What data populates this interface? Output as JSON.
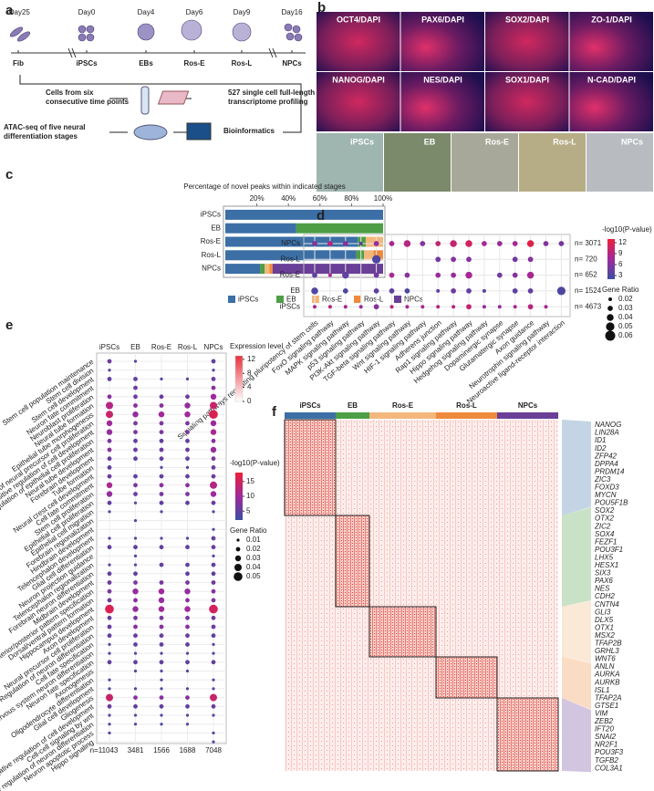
{
  "panel_labels": [
    "a",
    "b",
    "c",
    "d",
    "e",
    "f"
  ],
  "panel_a": {
    "days": [
      "-Day25",
      "Day0",
      "Day4",
      "Day6",
      "Day9",
      "Day16"
    ],
    "stages": [
      "Fib",
      "iPSCs",
      "EBs",
      "Ros-E",
      "Ros-L",
      "NPCs"
    ],
    "steps": [
      [
        "Cells from six",
        "consecutive time points"
      ],
      [
        "527 single cell full-length",
        "transcriptome profiling"
      ],
      [
        "ATAC-seq of five neural",
        "differentiation stages"
      ],
      [
        "Bioinformatics"
      ]
    ]
  },
  "panel_b": {
    "stains": [
      "OCT4/DAPI",
      "PAX6/DAPI",
      "SOX2/DAPI",
      "ZO-1/DAPI",
      "NANOG/DAPI",
      "NES/DAPI",
      "SOX1/DAPI",
      "N-CAD/DAPI"
    ],
    "brightfield": [
      "iPSCs",
      "EB",
      "Ros-E",
      "Ros-L",
      "NPCs"
    ]
  },
  "chart_data": [
    {
      "type": "bar",
      "orientation": "horizontal",
      "stacked": true,
      "title": "Percentage of novel peaks within indicated stages",
      "categories": [
        "iPSCs",
        "EB",
        "Ros-E",
        "Ros-L",
        "NPCs"
      ],
      "series": [
        {
          "name": "iPSCs",
          "color": "#3b6fa6",
          "values": [
            100,
            45,
            84,
            83,
            22
          ]
        },
        {
          "name": "EB",
          "color": "#4d9e46",
          "values": [
            0,
            55,
            5,
            5,
            3
          ]
        },
        {
          "name": "Ros-E",
          "color": "#f3b77c",
          "values": [
            0,
            0,
            11,
            6,
            3
          ]
        },
        {
          "name": "Ros-L",
          "color": "#ee8a3c",
          "values": [
            0,
            0,
            0,
            6,
            2
          ]
        },
        {
          "name": "NPCs",
          "color": "#6a3f97",
          "values": [
            0,
            0,
            0,
            0,
            70
          ]
        }
      ],
      "xlim": [
        0,
        100
      ],
      "xticks": [
        {
          "value": 20,
          "label": "20%"
        },
        {
          "value": 40,
          "label": "40%"
        },
        {
          "value": 60,
          "label": "60%"
        },
        {
          "value": 80,
          "label": "80%"
        },
        {
          "value": 100,
          "label": "100%"
        }
      ],
      "legend": "bottom"
    },
    {
      "type": "dot",
      "categories": [
        "Signaling pathways regulating pluripotency of stem cells",
        "FoxO signaling pathway",
        "MAPK signaling pathway",
        "p53 signaling pathway",
        "PI3K-Akt signaling pathway",
        "TGF-beta signaling pathway",
        "Wnt signaling pathway",
        "HIF-1 signaling pathway",
        "Adherens junction",
        "Rap1 signaling pathway",
        "Hippo signaling pathway",
        "Hedgehog signaling pathway",
        "Dopaminergic synapse",
        "Glutamatergic synapse",
        "Axon guidance",
        "Neurotrophin signaling pathway",
        "Neuroactive ligand-receptor interaction"
      ],
      "rows": [
        "NPCs",
        "Ros-L",
        "Ros-E",
        "EB",
        "iPSCs"
      ],
      "n_labels": [
        "n= 3071",
        "n= 720",
        "n= 652",
        "n= 1524",
        "n= 4673"
      ],
      "pvalues": [
        [
          6,
          9,
          6,
          4,
          7,
          8,
          9,
          6,
          10,
          10,
          11,
          8,
          7,
          8,
          12,
          6,
          5
        ],
        [
          null,
          null,
          null,
          null,
          3,
          null,
          null,
          null,
          5,
          6,
          6,
          null,
          null,
          5,
          6,
          null,
          null
        ],
        [
          4,
          8,
          4,
          null,
          5,
          8,
          6,
          null,
          7,
          7,
          8,
          null,
          5,
          6,
          8,
          null,
          null
        ],
        [
          3,
          null,
          3,
          null,
          4,
          4,
          3,
          null,
          4,
          5,
          4,
          3,
          null,
          4,
          4,
          null,
          3
        ],
        [
          8,
          9,
          8,
          7,
          6,
          9,
          8,
          8,
          9,
          9,
          10,
          7,
          7,
          8,
          9,
          8,
          null
        ]
      ],
      "ratios": [
        [
          0.03,
          0.03,
          0.03,
          0.02,
          0.03,
          0.03,
          0.04,
          0.03,
          0.03,
          0.04,
          0.04,
          0.03,
          0.03,
          0.03,
          0.04,
          0.03,
          0.03
        ],
        [
          null,
          null,
          null,
          null,
          0.05,
          null,
          null,
          null,
          0.03,
          0.03,
          0.03,
          null,
          null,
          0.03,
          0.03,
          null,
          null
        ],
        [
          0.03,
          0.02,
          0.04,
          null,
          0.03,
          0.03,
          0.03,
          null,
          0.03,
          0.03,
          0.04,
          null,
          0.03,
          0.03,
          0.04,
          null,
          null
        ],
        [
          0.04,
          null,
          0.03,
          null,
          0.03,
          0.03,
          0.03,
          null,
          0.02,
          0.03,
          0.03,
          0.02,
          null,
          0.03,
          0.03,
          null,
          0.05
        ],
        [
          0.02,
          0.02,
          0.02,
          0.02,
          0.03,
          0.02,
          0.02,
          0.02,
          0.02,
          0.02,
          0.03,
          0.02,
          0.02,
          0.02,
          0.03,
          0.02,
          null
        ]
      ],
      "color_title": "-log10(P-value)",
      "colors": [
        "#3c4ea2",
        "#a0299b",
        "#ec1f3a"
      ],
      "clim": [
        2,
        13
      ],
      "color_ticks": [
        3,
        6,
        9,
        12
      ],
      "size_title": "Gene Ratio",
      "size_ticks": [
        0.02,
        0.03,
        0.04,
        0.05,
        0.06
      ],
      "size_range": [
        0.02,
        0.06
      ]
    },
    {
      "type": "dot",
      "categories": [
        "iPSCs",
        "EB",
        "Ros-E",
        "Ros-L",
        "NPCs"
      ],
      "n_labels": [
        "n=11043",
        "3481",
        "1566",
        "1688",
        "7048"
      ],
      "rows": [
        "Stem cell population maintenance",
        "Stem cell division",
        "Stem cell development",
        "Neuron fate commitment",
        "Neuroblast proliferation",
        "Neural tube formation",
        "Epithelial tube morphogenesis",
        "Positive regulation of neural precursor cell proliferation",
        "Positive regulation of cell development",
        "Regulation of epithelial cell proliferation",
        "Neural tube development",
        "Forebrain development",
        "Tube formation",
        "Neural crest cell development",
        "Cell fate commitment",
        "Stem cell proliferation",
        "Epithelial cell proliferation",
        "Epithelial cell migration",
        "Forebrain regionalization",
        "Hindbrain development",
        "Telencephalon development",
        "Glial cell differentiation",
        "Neuron projection guidance",
        "Telencephalon regionalization",
        "Forebrain neuron differentiation",
        "Midbrain development",
        "Anterior/posterior pattern specification",
        "Dorsal/ventral pattern formation",
        "Hippocampus development",
        "Axon development",
        "Neural precursor cell proliferation",
        "Regulation of neuron differentiation",
        "Cell fate specification",
        "Central nervous system neuron differentiation",
        "Neuron fate specification",
        "Axonogenesis",
        "Oligodendrocyte differentiation",
        "Glial cell development",
        "Gliogenesis",
        "Negative regulation of cell development",
        "Cell-cell signaling by wnt",
        "Negative regulation of neuron differentiation",
        "Neuron apoptotic process",
        "Hippo signaling"
      ],
      "pvalues": [
        [
          6,
          3,
          null,
          null,
          5
        ],
        [
          4,
          null,
          null,
          null,
          4
        ],
        [
          5,
          5,
          4,
          4,
          6
        ],
        [
          null,
          6,
          null,
          null,
          8
        ],
        [
          8,
          6,
          6,
          6,
          10
        ],
        [
          12,
          8,
          8,
          9,
          14
        ],
        [
          14,
          9,
          10,
          10,
          16
        ],
        [
          10,
          7,
          7,
          7,
          10
        ],
        [
          9,
          7,
          7,
          7,
          11
        ],
        [
          7,
          5,
          5,
          5,
          8
        ],
        [
          8,
          6,
          6,
          6,
          9
        ],
        [
          6,
          5,
          5,
          5,
          7
        ],
        [
          5,
          null,
          4,
          4,
          6
        ],
        [
          6,
          5,
          5,
          5,
          6
        ],
        [
          11,
          7,
          8,
          8,
          12
        ],
        [
          9,
          6,
          7,
          7,
          10
        ],
        [
          5,
          4,
          5,
          5,
          6
        ],
        [
          4,
          null,
          4,
          null,
          4
        ],
        [
          null,
          4,
          null,
          null,
          null
        ],
        [
          null,
          null,
          null,
          null,
          4
        ],
        [
          4,
          4,
          4,
          4,
          5
        ],
        [
          5,
          5,
          5,
          5,
          6
        ],
        [
          null,
          4,
          null,
          null,
          4
        ],
        [
          4,
          4,
          5,
          5,
          5
        ],
        [
          5,
          5,
          null,
          5,
          5
        ],
        [
          6,
          7,
          7,
          7,
          6
        ],
        [
          7,
          9,
          10,
          9,
          8
        ],
        [
          6,
          8,
          9,
          8,
          7
        ],
        [
          16,
          9,
          10,
          10,
          15
        ],
        [
          5,
          7,
          7,
          7,
          6
        ],
        [
          6,
          8,
          8,
          8,
          6
        ],
        [
          5,
          6,
          6,
          6,
          5
        ],
        [
          4,
          5,
          5,
          5,
          4
        ],
        [
          4,
          4,
          4,
          4,
          4
        ],
        [
          5,
          5,
          5,
          5,
          5
        ],
        [
          null,
          4,
          4,
          4,
          null
        ],
        [
          4,
          null,
          4,
          null,
          4
        ],
        [
          4,
          4,
          4,
          4,
          4
        ],
        [
          14,
          8,
          8,
          8,
          14
        ],
        [
          6,
          5,
          5,
          5,
          6
        ],
        [
          4,
          4,
          4,
          4,
          4
        ],
        [
          3,
          3,
          3,
          3,
          null
        ],
        [
          4,
          null,
          null,
          null,
          4
        ],
        [
          null,
          null,
          null,
          null,
          4
        ]
      ],
      "ratios": [
        [
          0.02,
          0.01,
          null,
          null,
          0.02
        ],
        [
          0.01,
          null,
          null,
          null,
          0.01
        ],
        [
          0.02,
          0.02,
          0.01,
          0.01,
          0.02
        ],
        [
          null,
          0.02,
          null,
          null,
          0.02
        ],
        [
          0.02,
          0.02,
          0.02,
          0.02,
          0.03
        ],
        [
          0.04,
          0.02,
          0.02,
          0.03,
          0.04
        ],
        [
          0.04,
          0.03,
          0.03,
          0.03,
          0.05
        ],
        [
          0.03,
          0.02,
          0.02,
          0.02,
          0.03
        ],
        [
          0.03,
          0.02,
          0.02,
          0.02,
          0.03
        ],
        [
          0.02,
          0.02,
          0.02,
          0.02,
          0.02
        ],
        [
          0.02,
          0.02,
          0.02,
          0.02,
          0.03
        ],
        [
          0.02,
          0.02,
          0.02,
          0.02,
          0.02
        ],
        [
          0.02,
          null,
          0.01,
          0.01,
          0.02
        ],
        [
          0.02,
          0.02,
          0.02,
          0.02,
          0.02
        ],
        [
          0.03,
          0.02,
          0.02,
          0.02,
          0.04
        ],
        [
          0.03,
          0.02,
          0.02,
          0.02,
          0.03
        ],
        [
          0.02,
          0.01,
          0.02,
          0.02,
          0.02
        ],
        [
          0.01,
          null,
          0.01,
          null,
          0.01
        ],
        [
          null,
          0.01,
          null,
          null,
          null
        ],
        [
          null,
          null,
          null,
          null,
          0.01
        ],
        [
          0.01,
          0.01,
          0.01,
          0.01,
          0.02
        ],
        [
          0.02,
          0.02,
          0.02,
          0.02,
          0.02
        ],
        [
          null,
          0.01,
          null,
          null,
          0.01
        ],
        [
          0.01,
          0.01,
          0.02,
          0.02,
          0.02
        ],
        [
          0.02,
          0.02,
          null,
          0.02,
          0.02
        ],
        [
          0.02,
          0.02,
          0.02,
          0.02,
          0.02
        ],
        [
          0.02,
          0.03,
          0.03,
          0.03,
          0.02
        ],
        [
          0.02,
          0.02,
          0.03,
          0.02,
          0.02
        ],
        [
          0.05,
          0.03,
          0.03,
          0.03,
          0.05
        ],
        [
          0.02,
          0.02,
          0.02,
          0.02,
          0.02
        ],
        [
          0.02,
          0.02,
          0.02,
          0.02,
          0.02
        ],
        [
          0.02,
          0.02,
          0.02,
          0.02,
          0.02
        ],
        [
          0.01,
          0.02,
          0.02,
          0.02,
          0.01
        ],
        [
          0.01,
          0.01,
          0.01,
          0.01,
          0.01
        ],
        [
          0.02,
          0.02,
          0.02,
          0.02,
          0.02
        ],
        [
          null,
          0.01,
          0.01,
          0.01,
          null
        ],
        [
          0.01,
          null,
          0.01,
          null,
          0.01
        ],
        [
          0.01,
          0.01,
          0.01,
          0.01,
          0.01
        ],
        [
          0.04,
          0.02,
          0.02,
          0.02,
          0.04
        ],
        [
          0.02,
          0.02,
          0.02,
          0.02,
          0.02
        ],
        [
          0.01,
          0.01,
          0.01,
          0.01,
          0.01
        ],
        [
          0.01,
          0.01,
          0.01,
          0.01,
          null
        ],
        [
          0.01,
          null,
          null,
          null,
          0.01
        ],
        [
          null,
          null,
          null,
          null,
          0.01
        ]
      ],
      "color_title": "-log10(P-value)",
      "colors": [
        "#3c4ea2",
        "#a0299b",
        "#ec1f3a"
      ],
      "clim": [
        2,
        18
      ],
      "color_ticks": [
        5,
        10,
        15
      ],
      "size_title": "Gene Ratio",
      "size_ticks": [
        0.01,
        0.02,
        0.03,
        0.04,
        0.05
      ],
      "size_range": [
        0.01,
        0.05
      ]
    }
  ],
  "panel_f": {
    "legend_title": "Expression level",
    "legend_ticks": [
      0,
      4,
      8,
      12
    ],
    "legend_lim": [
      0,
      13
    ],
    "legend_colors": [
      "#ffffff",
      "#e8313a"
    ],
    "groups": [
      {
        "name": "iPSCs",
        "color": "#3b6fa6",
        "genes": [
          "NANOG",
          "LIN28A",
          "ID1",
          "ID2",
          "ZFP42",
          "DPPA4",
          "PRDM14",
          "ZIC3",
          "FOXD3",
          "MYCN",
          "POU5F1B"
        ]
      },
      {
        "name": "EB",
        "color": "#4d9e46",
        "genes": [
          "SOX2",
          "OTX2",
          "ZIC2",
          "SOX4",
          "FEZF1",
          "POU3F1",
          "LHX5",
          "HESX1",
          "SIX3",
          "PAX6",
          "NES",
          "CDH2"
        ]
      },
      {
        "name": "Ros-E",
        "color": "#f3b77c",
        "genes": [
          "CNTN4",
          "GLI3",
          "DLX5",
          "OTX1",
          "MSX2",
          "TFAP2B",
          "GRHL3",
          "WNT6"
        ]
      },
      {
        "name": "Ros-L",
        "color": "#ee8a3c",
        "genes": [
          "ANLN",
          "AURKA",
          "AURKB",
          "ISL1",
          "TFAP2A",
          "GTSE1"
        ]
      },
      {
        "name": "NPCs",
        "color": "#6a3f97",
        "genes": [
          "VIM",
          "ZEB2",
          "IFT20",
          "SNAI2",
          "NR2F1",
          "POU3F3",
          "TGFB2",
          "COL3A1"
        ]
      }
    ]
  }
}
